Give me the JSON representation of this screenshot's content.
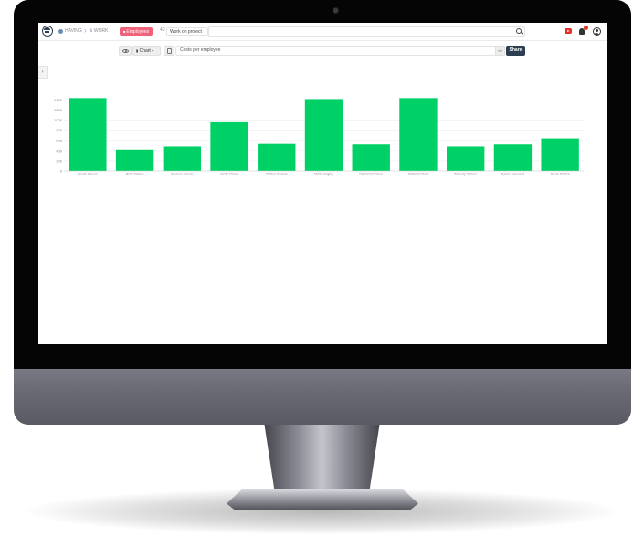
{
  "topbar": {
    "breadcrumb_1": "HAVING",
    "breadcrumb_2": "WORK",
    "tag_employees": "Employees",
    "tag_count": "43",
    "tag_project": "Work on project",
    "notification_count": "1"
  },
  "toolbar": {
    "chart_label": "Chart",
    "title_value": "Costs per employee",
    "code_label": "</>",
    "share_label": "Share"
  },
  "icons": [
    "avatar-icon",
    "search-icon",
    "youtube-icon",
    "bell-icon",
    "user-icon",
    "eye-icon",
    "chart-icon",
    "document-icon",
    "chevron-right-icon"
  ],
  "colors": {
    "bar": "#00d166",
    "share": "#2c3e50",
    "tag": "#f0627a"
  },
  "chart_data": {
    "type": "bar",
    "categories": [
      "Alexis Gauvin",
      "Belle Mason",
      "Carmen Horner",
      "Jerkin Pinaut",
      "Kirsten Ducoat",
      "Martu Sagley",
      "Nathaniel Prieur",
      "Natasha Runk",
      "Waverly Cyburn",
      "Sylvie Gauvand",
      "Sevla Collins"
    ],
    "values": [
      1440,
      420,
      480,
      960,
      530,
      1420,
      520,
      1440,
      480,
      520,
      640
    ],
    "yticks": [
      "0",
      "200",
      "400",
      "600",
      "800",
      "1000",
      "1200",
      "1400"
    ],
    "ylim": [
      0,
      1500
    ],
    "grid": true,
    "color": "#00d166"
  }
}
